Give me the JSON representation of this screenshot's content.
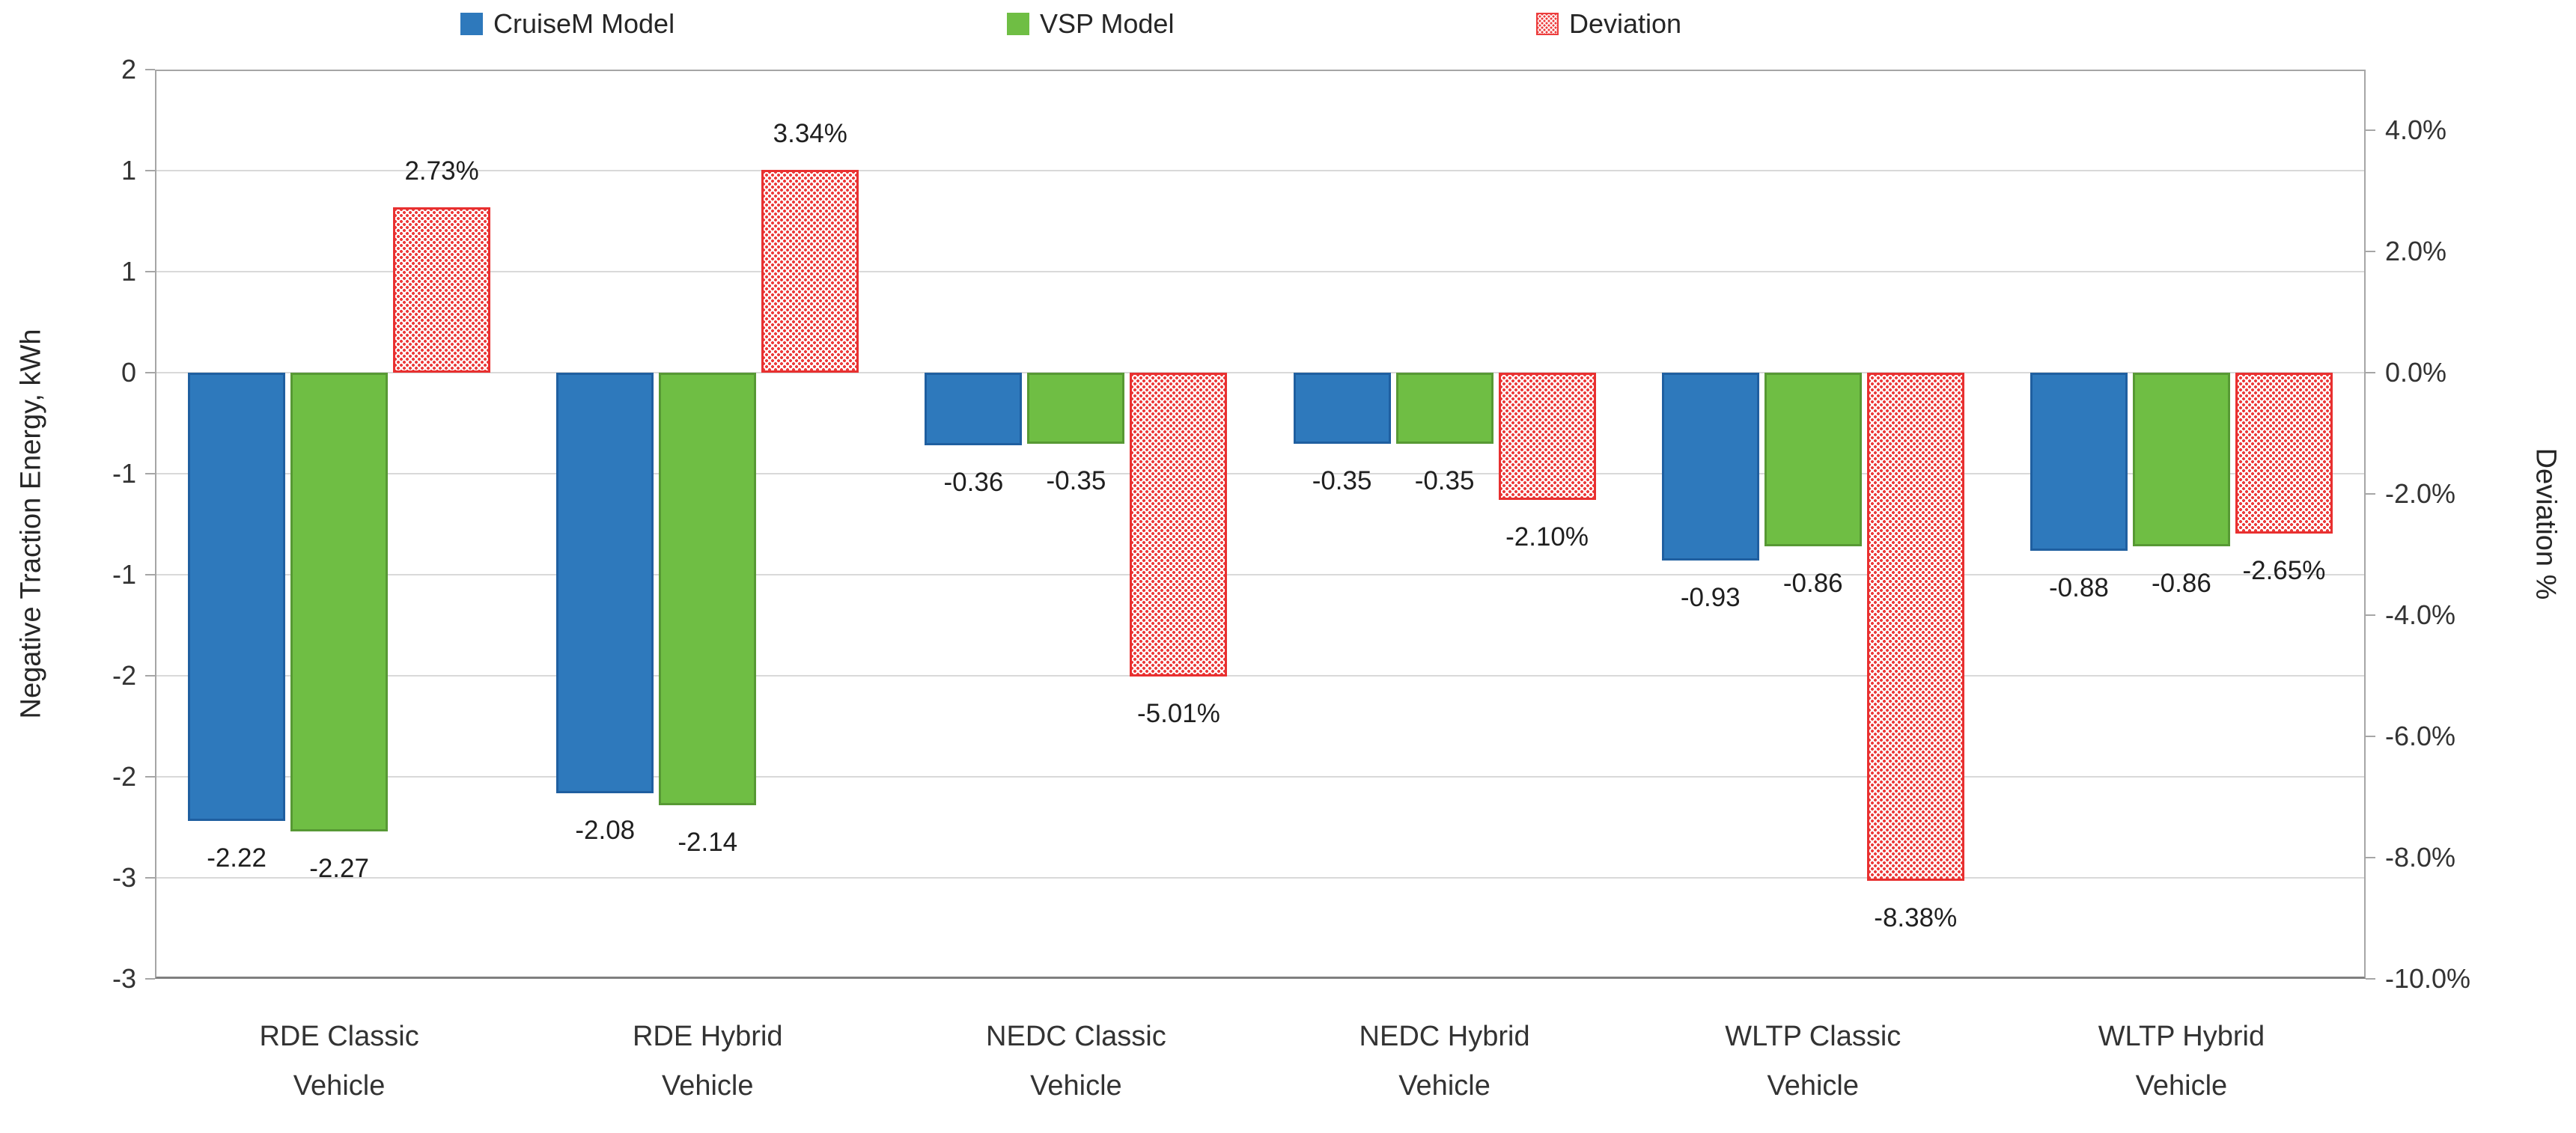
{
  "legend": {
    "items": [
      {
        "label": "CruiseM Model",
        "color": "#2E79BC",
        "pattern": "solid"
      },
      {
        "label": "VSP Model",
        "color": "#6FBE44",
        "pattern": "solid"
      },
      {
        "label": "Deviation",
        "color": "#EC3C3C",
        "pattern": "dots"
      }
    ]
  },
  "chart_data": {
    "type": "bar",
    "categories": [
      "RDE Classic\nVehicle",
      "RDE Hybrid\nVehicle",
      "NEDC Classic\nVehicle",
      "NEDC Hybrid\nVehicle",
      "WLTP Classic\nVehicle",
      "WLTP Hybrid\nVehicle"
    ],
    "series": [
      {
        "name": "CruiseM Model",
        "axis": "primary",
        "unit": "kWh",
        "color": "#2E79BC",
        "border_color": "#1F5FA0",
        "fill_pattern": "solid",
        "values": [
          -2.22,
          -2.08,
          -0.36,
          -0.35,
          -0.93,
          -0.88
        ],
        "data_labels": [
          "-2.22",
          "-2.08",
          "-0.36",
          "-0.35",
          "-0.93",
          "-0.88"
        ]
      },
      {
        "name": "VSP Model",
        "axis": "primary",
        "unit": "kWh",
        "color": "#6FBE44",
        "border_color": "#579934",
        "fill_pattern": "solid",
        "values": [
          -2.27,
          -2.14,
          -0.35,
          -0.35,
          -0.86,
          -0.86
        ],
        "data_labels": [
          "-2.27",
          "-2.14",
          "-0.35",
          "-0.35",
          "-0.86",
          "-0.86"
        ]
      },
      {
        "name": "Deviation",
        "axis": "secondary",
        "unit": "%",
        "color": "#EC3C3C",
        "border_color": "#E83030",
        "fill_pattern": "dots",
        "values": [
          2.73,
          3.34,
          -5.01,
          -2.1,
          -8.38,
          -2.65
        ],
        "data_labels": [
          "2.73%",
          "3.34%",
          "-5.01%",
          "-2.10%",
          "-8.38%",
          "-2.65%"
        ]
      }
    ],
    "left_axis": {
      "title": "Negative Traction Energy, kWh",
      "min": -3,
      "max": 1.5,
      "step": 0.5,
      "tick_labels": [
        "2",
        "1",
        "1",
        "0",
        "-1",
        "-1",
        "-2",
        "-2",
        "-3",
        "-3"
      ]
    },
    "right_axis": {
      "title": "Deviation %",
      "min": -10,
      "max": 5,
      "step": 2,
      "tick_values": [
        4,
        2,
        0,
        -2,
        -4,
        -6,
        -8,
        -10
      ],
      "tick_labels": [
        "4.0%",
        "2.0%",
        "0.0%",
        "-2.0%",
        "-4.0%",
        "-6.0%",
        "-8.0%",
        "-10.0%"
      ]
    },
    "grid": true,
    "legend_position": "top"
  }
}
